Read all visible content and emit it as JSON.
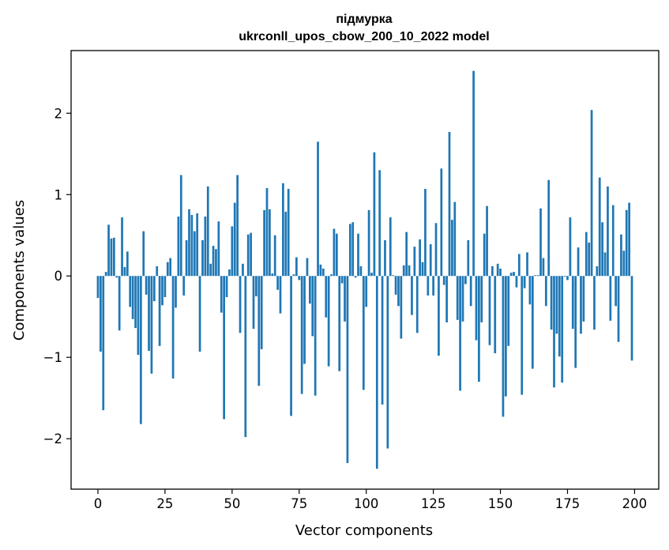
{
  "chart_data": {
    "type": "bar",
    "title_line1": "підмурка",
    "title_line2": "ukrconll_upos_cbow_200_10_2022 model",
    "xlabel": "Vector components",
    "ylabel": "Components values",
    "xlim": [
      -10,
      209
    ],
    "ylim": [
      -2.62,
      2.77
    ],
    "xticks": [
      0,
      25,
      50,
      75,
      100,
      125,
      150,
      175,
      200
    ],
    "yticks": [
      -2,
      -1,
      0,
      1,
      2
    ],
    "ytick_labels": [
      "−2",
      "−1",
      "0",
      "1",
      "2"
    ],
    "bar_color": "#1f77b4",
    "values": [
      -0.27,
      -0.93,
      -1.65,
      0.05,
      0.63,
      0.46,
      0.47,
      -0.02,
      -0.67,
      0.72,
      0.11,
      0.3,
      -0.38,
      -0.53,
      -0.64,
      -0.97,
      -1.82,
      0.55,
      -0.23,
      -0.92,
      -1.2,
      -0.31,
      0.12,
      -0.86,
      -0.36,
      -0.26,
      0.17,
      0.22,
      -1.26,
      -0.39,
      0.73,
      1.24,
      -0.24,
      0.44,
      0.82,
      0.75,
      0.55,
      0.77,
      -0.93,
      0.44,
      0.73,
      1.1,
      0.15,
      0.37,
      0.33,
      0.67,
      -0.45,
      -1.76,
      -0.26,
      0.08,
      0.61,
      0.9,
      1.24,
      -0.7,
      0.15,
      -1.98,
      0.51,
      0.53,
      -0.65,
      -0.25,
      -1.35,
      -0.9,
      0.81,
      1.08,
      0.82,
      0.03,
      0.5,
      -0.17,
      -0.46,
      1.14,
      0.79,
      1.07,
      -1.72,
      0.02,
      0.23,
      -0.05,
      -1.45,
      -1.08,
      0.22,
      -0.34,
      -0.74,
      -1.47,
      1.65,
      0.14,
      0.09,
      -0.51,
      -1.11,
      0.02,
      0.58,
      0.52,
      -1.17,
      -0.09,
      -0.56,
      -2.3,
      0.64,
      0.66,
      -0.02,
      0.52,
      0.12,
      -1.4,
      -0.38,
      0.81,
      0.04,
      1.52,
      -2.37,
      1.3,
      -1.58,
      0.44,
      -2.12,
      0.72,
      0.01,
      -0.23,
      -0.37,
      -0.77,
      0.13,
      0.54,
      0.13,
      -0.48,
      0.36,
      -0.7,
      0.45,
      0.17,
      1.07,
      -0.24,
      0.39,
      -0.24,
      0.65,
      -0.98,
      1.32,
      -0.11,
      -0.57,
      1.77,
      0.69,
      0.91,
      -0.54,
      -1.41,
      -0.56,
      -0.1,
      0.44,
      -0.37,
      2.52,
      -0.79,
      -1.3,
      -0.57,
      0.52,
      0.86,
      -0.85,
      0.12,
      -0.95,
      0.15,
      0.09,
      -1.73,
      -1.48,
      -0.86,
      0.04,
      0.05,
      -0.14,
      0.27,
      -1.46,
      -0.15,
      0.29,
      -0.35,
      -1.14,
      0.01,
      0.01,
      0.83,
      0.22,
      -0.37,
      1.18,
      -0.66,
      -1.37,
      -0.71,
      -0.99,
      -1.31,
      -0.01,
      -0.05,
      0.72,
      -0.65,
      -1.13,
      0.35,
      -0.71,
      -0.56,
      0.54,
      0.41,
      2.04,
      -0.66,
      0.12,
      1.21,
      0.66,
      0.29,
      1.1,
      -0.55,
      0.87,
      -0.37,
      -0.81,
      0.51,
      0.31,
      0.81,
      0.9,
      -1.04
    ]
  }
}
